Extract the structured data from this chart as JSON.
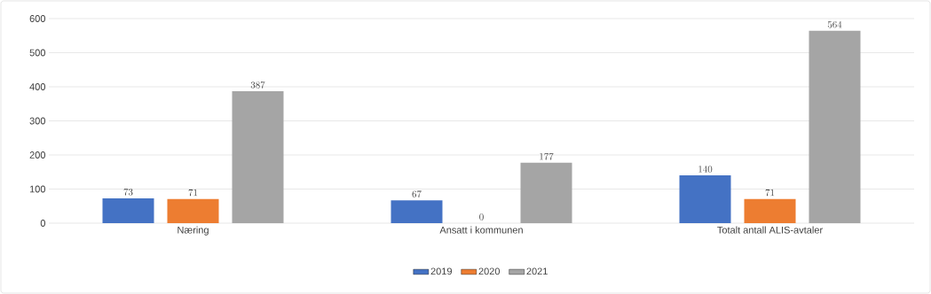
{
  "chart_data": {
    "type": "bar",
    "categories": [
      "Næring",
      "Ansatt i kommunen",
      "Totalt antall ALIS-avtaler"
    ],
    "series": [
      {
        "name": "2019",
        "color": "#4472c4",
        "values": [
          73,
          67,
          140
        ]
      },
      {
        "name": "2020",
        "color": "#ed7d31",
        "values": [
          71,
          0,
          71
        ]
      },
      {
        "name": "2021",
        "color": "#a5a5a5",
        "values": [
          387,
          177,
          564
        ]
      }
    ],
    "ylim": [
      0,
      600
    ],
    "yticks": [
      0,
      100,
      200,
      300,
      400,
      500,
      600
    ],
    "grid": "y",
    "legend": "bottom",
    "data_labels": true
  }
}
